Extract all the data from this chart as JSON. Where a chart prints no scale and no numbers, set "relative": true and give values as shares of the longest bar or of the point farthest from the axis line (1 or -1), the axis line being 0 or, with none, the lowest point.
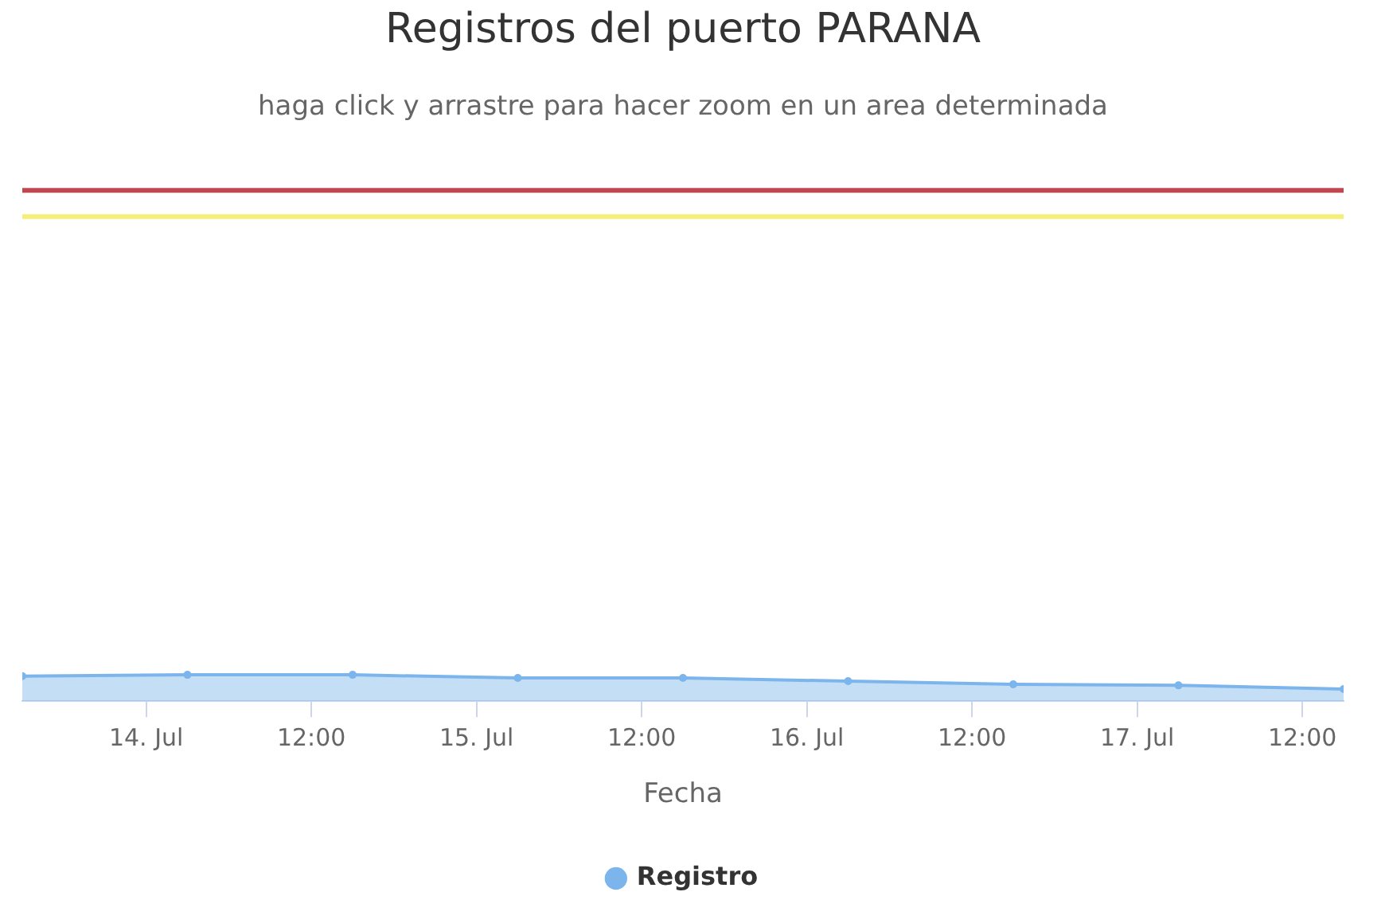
{
  "chart_data": {
    "type": "area",
    "title": "Registros del puerto PARANA",
    "subtitle": "haga click y arrastre para hacer zoom en un area determinada",
    "xlabel": "Fecha",
    "x": [
      "--07-13T15:00",
      "--07-14T03:00",
      "--07-14T15:00",
      "--07-15T03:00",
      "--07-15T15:00",
      "--07-16T03:00",
      "--07-16T15:00",
      "--07-17T03:00",
      "--07-17T15:00"
    ],
    "series": [
      {
        "name": "Registro",
        "color": "#7cb5ec",
        "values": [
          0.95,
          1,
          1,
          0.88,
          0.88,
          0.76,
          0.64,
          0.6,
          0.46
        ]
      }
    ],
    "relative": true,
    "xlim": [
      "--07-13T15:00",
      "--07-17T15:00"
    ],
    "xticks": [
      {
        "value": "--07-14T00:00",
        "label": "14. Jul"
      },
      {
        "value": "--07-14T12:00",
        "label": "12:00"
      },
      {
        "value": "--07-15T00:00",
        "label": "15. Jul"
      },
      {
        "value": "--07-15T12:00",
        "label": "12:00"
      },
      {
        "value": "--07-16T00:00",
        "label": "16. Jul"
      },
      {
        "value": "--07-16T12:00",
        "label": "12:00"
      },
      {
        "value": "--07-17T00:00",
        "label": "17. Jul"
      },
      {
        "value": "--07-17T12:00",
        "label": "12:00"
      }
    ],
    "ref_lines": [
      {
        "axis": "y",
        "value": 19.4,
        "color": "#c0474f"
      },
      {
        "axis": "y",
        "value": 18.4,
        "color": "#f5ef7a"
      }
    ],
    "legend": "bottom",
    "marker": "circle"
  }
}
